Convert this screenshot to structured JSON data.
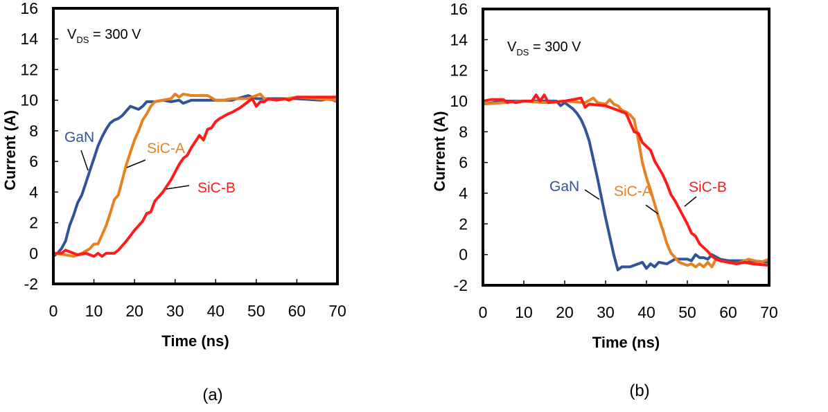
{
  "chart_data": [
    {
      "type": "line",
      "panel_label": "(a)",
      "annotation": {
        "main": "V",
        "sub": "DS",
        "rest": " = 300 V"
      },
      "xlabel": "Time (ns)",
      "ylabel": "Current (A)",
      "xlim": [
        0,
        70
      ],
      "ylim": [
        -2,
        16
      ],
      "xticks": [
        "0",
        "10",
        "20",
        "30",
        "40",
        "50",
        "60",
        "70"
      ],
      "yticks": [
        "-2",
        "0",
        "2",
        "4",
        "6",
        "8",
        "10",
        "12",
        "14",
        "16"
      ],
      "grid": false,
      "series": [
        {
          "name": "GaN",
          "color": "#2f5597",
          "x": [
            0,
            1,
            2,
            3,
            4,
            5,
            6,
            7,
            8,
            9,
            10,
            11,
            12,
            13,
            14,
            15,
            16,
            17,
            18,
            19,
            20,
            21,
            22,
            23,
            25,
            27,
            29,
            31,
            32,
            34,
            40,
            44,
            48,
            50,
            55,
            60,
            66,
            68,
            70
          ],
          "y": [
            -0.2,
            0,
            0.3,
            0.8,
            1.8,
            2.5,
            3.3,
            3.8,
            4.6,
            5.4,
            6.2,
            7,
            7.6,
            8.1,
            8.5,
            8.7,
            8.8,
            9,
            9.3,
            9.6,
            9.5,
            9.4,
            9.6,
            9.9,
            9.9,
            10,
            9.9,
            10,
            9.8,
            10,
            10,
            10,
            10.3,
            10.1,
            10.1,
            10.1,
            10,
            10.1,
            9.9
          ]
        },
        {
          "name": "SiC-A",
          "color": "#e8801f",
          "x": [
            0,
            3,
            5,
            7,
            9,
            10,
            11,
            12,
            13,
            14,
            15,
            16,
            17,
            18,
            19,
            20,
            21,
            22,
            23,
            24,
            25,
            27,
            29,
            30,
            31,
            32,
            34,
            38,
            40,
            42,
            44,
            48,
            50,
            51,
            52,
            55,
            60,
            70
          ],
          "y": [
            0,
            -0.1,
            -0.2,
            0,
            0.3,
            0.6,
            0.6,
            1.2,
            1.8,
            2.6,
            3.5,
            3.8,
            4.8,
            5.8,
            6.6,
            7.4,
            8,
            8.7,
            9.1,
            9.6,
            9.9,
            10,
            10.1,
            10.4,
            10.2,
            10.4,
            10.3,
            10.3,
            10,
            10,
            10.1,
            10.1,
            10.3,
            10.4,
            10.1,
            10,
            10.2,
            10
          ]
        },
        {
          "name": "SiC-B",
          "color": "#ff1a1a",
          "x": [
            0,
            2,
            3,
            5,
            6,
            8,
            10,
            11,
            12,
            13,
            15,
            16,
            18,
            20,
            22,
            23,
            24,
            25,
            27,
            29,
            30,
            31,
            32,
            33,
            34,
            35,
            36,
            37,
            38,
            39,
            40,
            41,
            43,
            44,
            46,
            48,
            49,
            50,
            51,
            52,
            53,
            55,
            57,
            58,
            60,
            68,
            70
          ],
          "y": [
            0,
            0,
            0.2,
            0,
            -0.1,
            0,
            -0.2,
            0,
            -0.2,
            0,
            0,
            0.2,
            0.8,
            1.5,
            2.1,
            2.6,
            2.7,
            3.4,
            4,
            4.8,
            5.3,
            5.8,
            6.2,
            6.4,
            6.9,
            7.3,
            7.7,
            7.4,
            8.1,
            8.2,
            8.6,
            8.8,
            9.1,
            9.2,
            9.5,
            9.9,
            10.1,
            9.6,
            9.9,
            9.9,
            10.1,
            10,
            10.1,
            10,
            10.2,
            10.2,
            10.2
          ]
        }
      ]
    },
    {
      "type": "line",
      "panel_label": "(b)",
      "annotation": {
        "main": "V",
        "sub": "DS",
        "rest": " = 300 V"
      },
      "xlabel": "Time (ns)",
      "ylabel": "Current (A)",
      "xlim": [
        0,
        70
      ],
      "ylim": [
        -2,
        16
      ],
      "xticks": [
        "0",
        "10",
        "20",
        "30",
        "40",
        "50",
        "60",
        "70"
      ],
      "yticks": [
        "-2",
        "0",
        "2",
        "4",
        "6",
        "8",
        "10",
        "12",
        "14",
        "16"
      ],
      "grid": false,
      "series": [
        {
          "name": "GaN",
          "color": "#2f5597",
          "x": [
            0,
            5,
            10,
            15,
            18,
            19,
            20,
            21,
            22,
            23,
            24,
            25,
            26,
            27,
            28,
            29,
            30,
            31,
            32,
            33,
            34,
            36,
            38,
            39,
            40,
            41,
            42,
            43,
            45,
            47,
            50,
            51,
            52,
            53,
            54,
            55,
            56,
            58,
            60,
            65,
            70
          ],
          "y": [
            9.8,
            10,
            10,
            10,
            10,
            9.7,
            9.9,
            9.7,
            9.5,
            9.2,
            8.8,
            8.2,
            7.4,
            6.2,
            5,
            3.7,
            2.4,
            1.2,
            0,
            -1,
            -0.8,
            -0.8,
            -0.6,
            -0.5,
            -0.9,
            -0.6,
            -0.8,
            -0.5,
            -0.6,
            -0.3,
            -0.3,
            -0.4,
            0,
            -0.2,
            -0.2,
            -0.3,
            0,
            -0.3,
            -0.4,
            -0.4,
            -0.5
          ]
        },
        {
          "name": "SiC-A",
          "color": "#e8801f",
          "x": [
            0,
            5,
            10,
            15,
            20,
            25,
            27,
            28,
            30,
            31,
            32,
            33,
            34,
            35,
            36,
            37,
            38,
            39,
            40,
            41,
            42,
            43,
            44,
            45,
            46,
            47,
            48,
            49,
            50,
            51,
            52,
            53,
            54,
            55,
            56,
            57,
            58,
            60,
            62,
            65,
            68,
            70
          ],
          "y": [
            9.8,
            9.9,
            10,
            9.9,
            10,
            9.9,
            10.2,
            9.9,
            9.8,
            10.1,
            9.8,
            9.7,
            9.4,
            9.3,
            9.1,
            8.8,
            7.5,
            6,
            5,
            4.2,
            3.3,
            2.4,
            1.6,
            0.7,
            0.1,
            -0.2,
            -0.5,
            -0.6,
            -0.7,
            -0.6,
            -0.8,
            -0.6,
            -0.8,
            -0.5,
            -0.8,
            -0.3,
            -0.4,
            -0.5,
            -0.6,
            -0.3,
            -0.5,
            -0.3
          ]
        },
        {
          "name": "SiC-B",
          "color": "#ff1a1a",
          "x": [
            0,
            2,
            5,
            6,
            7,
            8,
            10,
            12,
            13,
            14,
            15,
            16,
            20,
            24,
            25,
            26,
            30,
            33,
            35,
            36,
            37,
            38,
            39,
            41,
            42,
            44,
            45,
            46,
            47,
            48,
            49,
            50,
            51,
            52,
            53,
            55,
            56,
            57,
            58,
            60,
            62,
            64,
            66,
            70
          ],
          "y": [
            10,
            10.1,
            10.1,
            9.9,
            10,
            9.9,
            10,
            10,
            10.4,
            10,
            10.4,
            9.9,
            10,
            10.2,
            9.6,
            9.8,
            9.7,
            9.4,
            9.2,
            8.6,
            8,
            7.9,
            7.3,
            6.8,
            6.1,
            5.2,
            4.6,
            3.9,
            3.5,
            3,
            2.5,
            2,
            1.4,
            1.2,
            0.7,
            0.2,
            -0.1,
            -0.3,
            -0.4,
            -0.5,
            -0.6,
            -0.5,
            -0.6,
            -0.7
          ]
        }
      ]
    }
  ]
}
